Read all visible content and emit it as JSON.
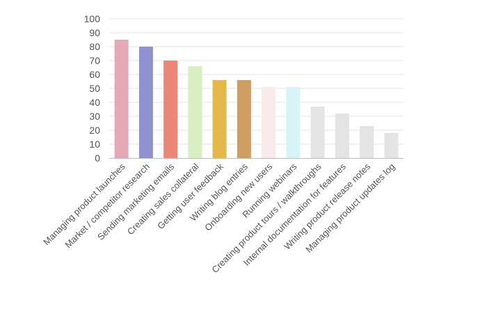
{
  "chart_data": {
    "type": "bar",
    "title": "",
    "xlabel": "",
    "ylabel": "",
    "ylim": [
      0,
      100
    ],
    "yticks": [
      0,
      10,
      20,
      30,
      40,
      50,
      60,
      70,
      80,
      90,
      100
    ],
    "grid": true,
    "legend": "none",
    "categories": [
      "Managing product launches",
      "Market / competitor research",
      "Sending marketing emails",
      "Creating sales collateral",
      "Getting user feedback",
      "Writing blog entries",
      "Onboarding new users",
      "Running webinars",
      "Creating product tours / walkthroughs",
      "Internal documentation for features",
      "Writing product release notes",
      "Managing product updates log"
    ],
    "values": [
      85,
      80,
      70,
      66,
      56,
      56,
      51,
      51,
      37,
      32,
      23,
      18
    ],
    "colors": [
      "#e4a9b7",
      "#9091cf",
      "#ec8677",
      "#d7efc2",
      "#e4b84b",
      "#cf9c62",
      "#fbeaec",
      "#d9f4f7",
      "#e4e4e4",
      "#e4e4e4",
      "#e4e4e4",
      "#e4e4e4"
    ]
  }
}
